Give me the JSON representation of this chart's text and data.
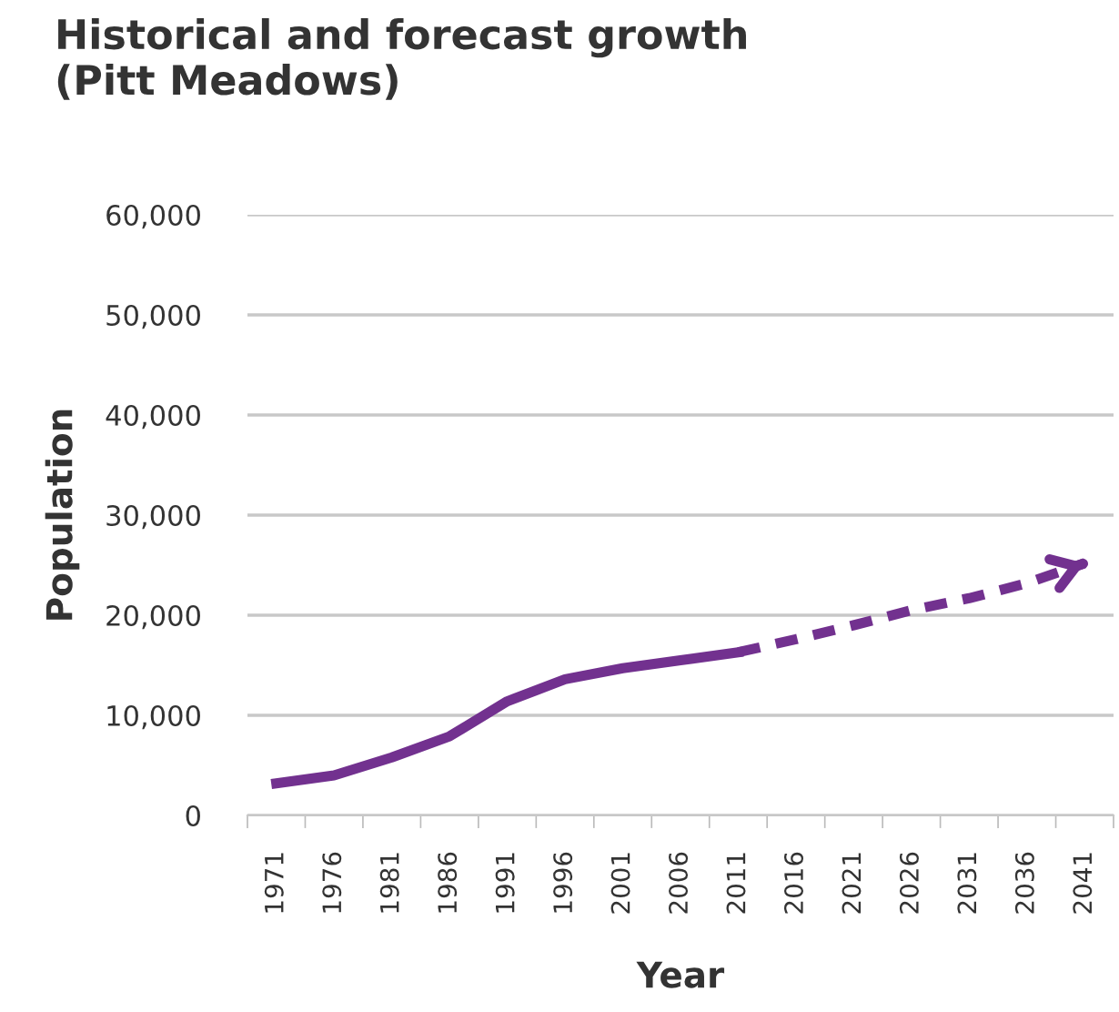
{
  "chart_data": {
    "type": "line",
    "title": "Historical and forecast growth\n(Pitt Meadows)",
    "xlabel": "Year",
    "ylabel": "Population",
    "categories": [
      "1971",
      "1976",
      "1981",
      "1986",
      "1991",
      "1996",
      "2001",
      "2006",
      "2011",
      "2016",
      "2021",
      "2026",
      "2031",
      "2036",
      "2041"
    ],
    "series": [
      {
        "color": "#72318f",
        "line_style": "solid",
        "values": [
          3200,
          4000,
          5800,
          7900,
          11400,
          13600,
          14700,
          15500,
          16300,
          null,
          null,
          null,
          null,
          null,
          null
        ]
      },
      {
        "color": "#72318f",
        "line_style": "dashed",
        "values": [
          null,
          null,
          null,
          null,
          null,
          null,
          null,
          null,
          16300,
          17600,
          19000,
          20500,
          21700,
          23200,
          25200
        ]
      }
    ],
    "ylim": [
      0,
      60000
    ],
    "yticks": [
      {
        "value": 0,
        "label": "0"
      },
      {
        "value": 10000,
        "label": "10,000"
      },
      {
        "value": 20000,
        "label": "20,000"
      },
      {
        "value": 30000,
        "label": "30,000"
      },
      {
        "value": 40000,
        "label": "40,000"
      },
      {
        "value": 50000,
        "label": "50,000"
      },
      {
        "value": 60000,
        "label": "60,000"
      }
    ],
    "grid": "y",
    "legend": false,
    "marker": "none"
  }
}
